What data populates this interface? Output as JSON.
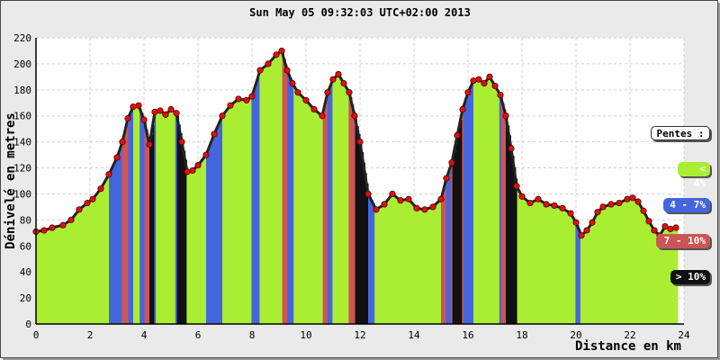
{
  "chart_data": {
    "type": "area",
    "title": "Sun May 05 09:32:03 UTC+02:00 2013",
    "xlabel": "Distance en km",
    "ylabel": "Dénivelé en metres",
    "xlim": [
      0,
      24
    ],
    "ylim": [
      0,
      220
    ],
    "xticks": [
      0,
      2,
      4,
      6,
      8,
      10,
      12,
      14,
      16,
      18,
      20,
      22,
      24
    ],
    "yticks": [
      0,
      20,
      40,
      60,
      80,
      100,
      120,
      140,
      160,
      180,
      200,
      220
    ],
    "grid": true,
    "legend_position": "right",
    "legend": {
      "title": "Pentes :",
      "items": [
        {
          "label": "< 4%",
          "color": "#aaee33",
          "text_color": "#ffffff"
        },
        {
          "label": "4 - 7%",
          "color": "#4466dd",
          "text_color": "#ffffff"
        },
        {
          "label": "7 - 10%",
          "color": "#cc5555",
          "text_color": "#ffffff"
        },
        {
          "label": "> 10%",
          "color": "#111111",
          "text_color": "#ffffff"
        }
      ]
    },
    "marker_color": "#dd1111",
    "x": [
      0.0,
      0.3,
      0.6,
      1.0,
      1.3,
      1.6,
      1.9,
      2.1,
      2.4,
      2.7,
      3.0,
      3.2,
      3.4,
      3.6,
      3.8,
      4.0,
      4.2,
      4.4,
      4.6,
      4.8,
      5.0,
      5.2,
      5.4,
      5.6,
      5.8,
      6.0,
      6.3,
      6.6,
      6.9,
      7.2,
      7.5,
      7.8,
      8.0,
      8.3,
      8.6,
      8.9,
      9.1,
      9.3,
      9.5,
      9.7,
      10.0,
      10.3,
      10.6,
      10.8,
      11.0,
      11.2,
      11.4,
      11.6,
      11.8,
      12.0,
      12.3,
      12.6,
      12.9,
      13.2,
      13.5,
      13.8,
      14.1,
      14.4,
      14.7,
      15.0,
      15.2,
      15.4,
      15.6,
      15.8,
      16.0,
      16.2,
      16.4,
      16.6,
      16.8,
      17.0,
      17.2,
      17.4,
      17.6,
      17.8,
      18.0,
      18.3,
      18.6,
      18.9,
      19.2,
      19.5,
      19.8,
      20.0,
      20.2,
      20.4,
      20.6,
      20.8,
      21.0,
      21.3,
      21.6,
      21.9,
      22.1,
      22.3,
      22.5,
      22.7,
      22.9,
      23.1,
      23.3,
      23.5,
      23.7
    ],
    "y": [
      71,
      72,
      74,
      76,
      80,
      88,
      93,
      96,
      104,
      115,
      128,
      140,
      158,
      167,
      168,
      157,
      138,
      163,
      164,
      161,
      165,
      162,
      140,
      117,
      118,
      122,
      130,
      146,
      160,
      168,
      173,
      172,
      175,
      195,
      200,
      207,
      210,
      195,
      185,
      178,
      172,
      165,
      160,
      178,
      188,
      192,
      185,
      178,
      160,
      140,
      100,
      88,
      92,
      100,
      95,
      96,
      89,
      88,
      90,
      96,
      112,
      124,
      145,
      165,
      178,
      187,
      188,
      185,
      190,
      183,
      176,
      160,
      135,
      106,
      98,
      93,
      96,
      92,
      91,
      89,
      85,
      78,
      68,
      72,
      78,
      86,
      90,
      92,
      93,
      96,
      97,
      94,
      87,
      79,
      72,
      68,
      75,
      73,
      74
    ]
  }
}
